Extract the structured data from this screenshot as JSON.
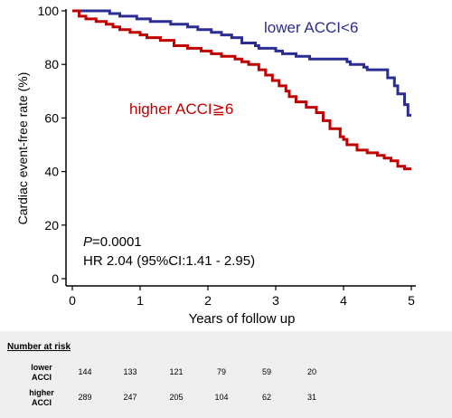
{
  "chart_data": {
    "type": "line",
    "title": "",
    "xlabel": "Years of follow up",
    "ylabel": "Cardiac event-free rate (%)",
    "xlim": [
      0,
      5
    ],
    "ylim": [
      0,
      100
    ],
    "xticks": [
      "0",
      "1",
      "2",
      "3",
      "4",
      "5"
    ],
    "yticks": [
      "0",
      "20",
      "40",
      "60",
      "80",
      "100"
    ],
    "grid": false,
    "series": [
      {
        "name": "lower ACCI<6",
        "color": "#2c2c95",
        "points": [
          [
            0,
            100
          ],
          [
            0.3,
            100
          ],
          [
            0.55,
            99
          ],
          [
            0.7,
            98
          ],
          [
            0.95,
            97
          ],
          [
            1.15,
            96
          ],
          [
            1.45,
            95
          ],
          [
            1.7,
            94
          ],
          [
            1.85,
            93
          ],
          [
            2.05,
            92
          ],
          [
            2.2,
            91
          ],
          [
            2.35,
            90
          ],
          [
            2.5,
            88
          ],
          [
            2.7,
            87
          ],
          [
            2.75,
            86
          ],
          [
            3.0,
            85
          ],
          [
            3.1,
            84
          ],
          [
            3.3,
            83
          ],
          [
            3.5,
            82
          ],
          [
            4.0,
            82
          ],
          [
            4.05,
            81
          ],
          [
            4.1,
            80
          ],
          [
            4.3,
            79
          ],
          [
            4.35,
            78
          ],
          [
            4.6,
            78
          ],
          [
            4.65,
            75
          ],
          [
            4.75,
            72
          ],
          [
            4.8,
            69
          ],
          [
            4.9,
            65
          ],
          [
            4.95,
            61
          ],
          [
            5.0,
            61
          ]
        ]
      },
      {
        "name": "higher ACCI≧6",
        "color": "#c00000",
        "points": [
          [
            0,
            100
          ],
          [
            0.1,
            98
          ],
          [
            0.2,
            97
          ],
          [
            0.35,
            96
          ],
          [
            0.5,
            95
          ],
          [
            0.6,
            94
          ],
          [
            0.7,
            93
          ],
          [
            0.85,
            92
          ],
          [
            1.0,
            91
          ],
          [
            1.1,
            90
          ],
          [
            1.3,
            89
          ],
          [
            1.5,
            87
          ],
          [
            1.7,
            86
          ],
          [
            1.9,
            85
          ],
          [
            2.05,
            84
          ],
          [
            2.2,
            83
          ],
          [
            2.4,
            82
          ],
          [
            2.5,
            81
          ],
          [
            2.6,
            80
          ],
          [
            2.75,
            78
          ],
          [
            2.85,
            76
          ],
          [
            2.95,
            74
          ],
          [
            3.05,
            72
          ],
          [
            3.15,
            70
          ],
          [
            3.2,
            68
          ],
          [
            3.3,
            66
          ],
          [
            3.45,
            64
          ],
          [
            3.6,
            62
          ],
          [
            3.7,
            59
          ],
          [
            3.8,
            56
          ],
          [
            3.95,
            53
          ],
          [
            4.0,
            52
          ],
          [
            4.05,
            50
          ],
          [
            4.2,
            48
          ],
          [
            4.35,
            47
          ],
          [
            4.5,
            46
          ],
          [
            4.6,
            45
          ],
          [
            4.7,
            44
          ],
          [
            4.8,
            42
          ],
          [
            4.9,
            41
          ],
          [
            5.0,
            41
          ]
        ]
      }
    ],
    "annotations": {
      "lower_label": "lower ACCI<6",
      "higher_label": "higher ACCI≧6",
      "p_italic": "P",
      "p_rest": "=0.0001",
      "hr": "HR 2.04 (95%CI:1.41 - 2.95)"
    }
  },
  "risk_table": {
    "title": "Number at risk",
    "rows": [
      {
        "label_line1": "lower",
        "label_line2": "ACCI",
        "values": [
          "144",
          "133",
          "121",
          "79",
          "59",
          "20"
        ]
      },
      {
        "label_line1": "higher",
        "label_line2": "ACCI",
        "values": [
          "289",
          "247",
          "205",
          "104",
          "62",
          "31"
        ]
      }
    ]
  }
}
